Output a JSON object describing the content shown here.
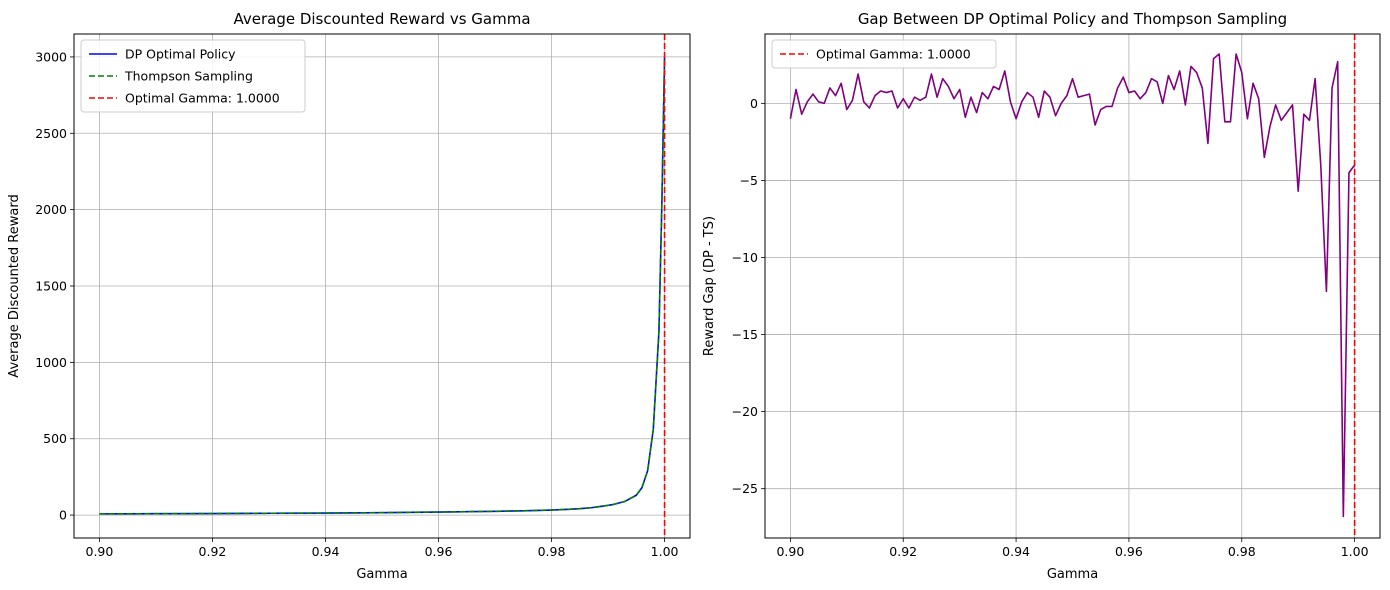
{
  "chart_data": [
    {
      "type": "line",
      "title": "Average Discounted Reward vs Gamma",
      "xlabel": "Gamma",
      "ylabel": "Average Discounted Reward",
      "xlim": [
        0.8955,
        1.0045
      ],
      "ylim": [
        -150,
        3150
      ],
      "xticks": [
        0.9,
        0.92,
        0.94,
        0.96,
        0.98,
        1.0
      ],
      "xtick_labels": [
        "0.90",
        "0.92",
        "0.94",
        "0.96",
        "0.98",
        "1.00"
      ],
      "yticks": [
        0,
        500,
        1000,
        1500,
        2000,
        2500,
        3000
      ],
      "ytick_labels": [
        "0",
        "500",
        "1000",
        "1500",
        "2000",
        "2500",
        "3000"
      ],
      "grid": true,
      "legend_position": "upper-left",
      "vline": {
        "x": 1.0,
        "label": "Optimal Gamma: 1.0000",
        "color": "#ff0000",
        "style": "dashed"
      },
      "series": [
        {
          "name": "DP Optimal Policy",
          "color": "#0000ff",
          "style": "solid",
          "x": [
            0.9,
            0.91,
            0.92,
            0.93,
            0.94,
            0.95,
            0.955,
            0.96,
            0.965,
            0.97,
            0.975,
            0.98,
            0.983,
            0.985,
            0.987,
            0.989,
            0.991,
            0.993,
            0.995,
            0.996,
            0.997,
            0.998,
            0.999,
            0.9995,
            1.0
          ],
          "y": [
            8,
            9,
            10,
            12,
            13,
            16,
            18,
            20,
            22,
            25,
            28,
            33,
            38,
            42,
            48,
            58,
            70,
            90,
            130,
            180,
            290,
            560,
            1200,
            2000,
            3000
          ]
        },
        {
          "name": "Thompson Sampling",
          "color": "#008000",
          "style": "dashed",
          "x": [
            0.9,
            0.91,
            0.92,
            0.93,
            0.94,
            0.95,
            0.955,
            0.96,
            0.965,
            0.97,
            0.975,
            0.98,
            0.983,
            0.985,
            0.987,
            0.989,
            0.991,
            0.993,
            0.995,
            0.996,
            0.997,
            0.998,
            0.999,
            0.9995,
            1.0
          ],
          "y": [
            8,
            9,
            10,
            12,
            13,
            16,
            18,
            20,
            22,
            25,
            28,
            33,
            38,
            42,
            48,
            58,
            70,
            90,
            130,
            180,
            290,
            560,
            1200,
            2000,
            3000
          ]
        }
      ]
    },
    {
      "type": "line",
      "title": "Gap Between DP Optimal Policy and Thompson Sampling",
      "xlabel": "Gamma",
      "ylabel": "Reward Gap (DP - TS)",
      "xlim": [
        0.8955,
        1.0045
      ],
      "ylim": [
        -28.2,
        4.5
      ],
      "xticks": [
        0.9,
        0.92,
        0.94,
        0.96,
        0.98,
        1.0
      ],
      "xtick_labels": [
        "0.90",
        "0.92",
        "0.94",
        "0.96",
        "0.98",
        "1.00"
      ],
      "yticks": [
        0,
        -5,
        -10,
        -15,
        -20,
        -25
      ],
      "ytick_labels": [
        "0",
        "−5",
        "−10",
        "−15",
        "−20",
        "−25"
      ],
      "grid": true,
      "legend_position": "upper-left",
      "vline": {
        "x": 1.0,
        "label": "Optimal Gamma: 1.0000",
        "color": "#ff0000",
        "style": "dashed"
      },
      "series": [
        {
          "color": "#800080",
          "style": "solid",
          "x": [
            0.9,
            0.901,
            0.902,
            0.903,
            0.904,
            0.905,
            0.906,
            0.907,
            0.908,
            0.909,
            0.91,
            0.911,
            0.912,
            0.913,
            0.914,
            0.915,
            0.916,
            0.917,
            0.918,
            0.919,
            0.92,
            0.921,
            0.922,
            0.923,
            0.924,
            0.925,
            0.926,
            0.927,
            0.928,
            0.929,
            0.93,
            0.931,
            0.932,
            0.933,
            0.934,
            0.935,
            0.936,
            0.937,
            0.938,
            0.939,
            0.94,
            0.941,
            0.942,
            0.943,
            0.944,
            0.945,
            0.946,
            0.947,
            0.948,
            0.949,
            0.95,
            0.951,
            0.952,
            0.953,
            0.954,
            0.955,
            0.956,
            0.957,
            0.958,
            0.959,
            0.96,
            0.961,
            0.962,
            0.963,
            0.964,
            0.965,
            0.966,
            0.967,
            0.968,
            0.969,
            0.97,
            0.971,
            0.972,
            0.973,
            0.974,
            0.975,
            0.976,
            0.977,
            0.978,
            0.979,
            0.98,
            0.981,
            0.982,
            0.983,
            0.984,
            0.985,
            0.986,
            0.987,
            0.988,
            0.989,
            0.99,
            0.991,
            0.992,
            0.993,
            0.994,
            0.995,
            0.996,
            0.997,
            0.998,
            0.999,
            1.0
          ],
          "y": [
            -1.0,
            0.9,
            -0.7,
            0.1,
            0.6,
            0.1,
            0.0,
            1.0,
            0.5,
            1.3,
            -0.4,
            0.2,
            1.9,
            0.1,
            -0.3,
            0.5,
            0.8,
            0.7,
            0.8,
            -0.3,
            0.3,
            -0.3,
            0.4,
            0.2,
            0.4,
            1.9,
            0.4,
            1.6,
            1.1,
            0.3,
            0.9,
            -0.9,
            0.4,
            -0.6,
            0.7,
            0.3,
            1.1,
            0.9,
            2.1,
            0.1,
            -1.0,
            0.1,
            0.7,
            0.4,
            -0.9,
            0.8,
            0.4,
            -0.8,
            0.0,
            0.5,
            1.6,
            0.4,
            0.5,
            0.6,
            -1.4,
            -0.4,
            -0.2,
            -0.2,
            1.0,
            1.7,
            0.7,
            0.8,
            0.3,
            0.7,
            1.6,
            1.4,
            0.0,
            1.8,
            0.9,
            2.1,
            -0.1,
            2.4,
            2.0,
            1.0,
            -2.6,
            2.9,
            3.2,
            -1.2,
            -1.2,
            3.2,
            2.0,
            -1.0,
            1.3,
            0.3,
            -3.5,
            -1.5,
            -0.1,
            -1.1,
            -0.6,
            -0.1,
            -5.7,
            -0.7,
            -1.1,
            1.6,
            -4.0,
            -12.2,
            1.0,
            2.7,
            -26.8,
            -4.5,
            -4.0
          ]
        }
      ]
    }
  ]
}
